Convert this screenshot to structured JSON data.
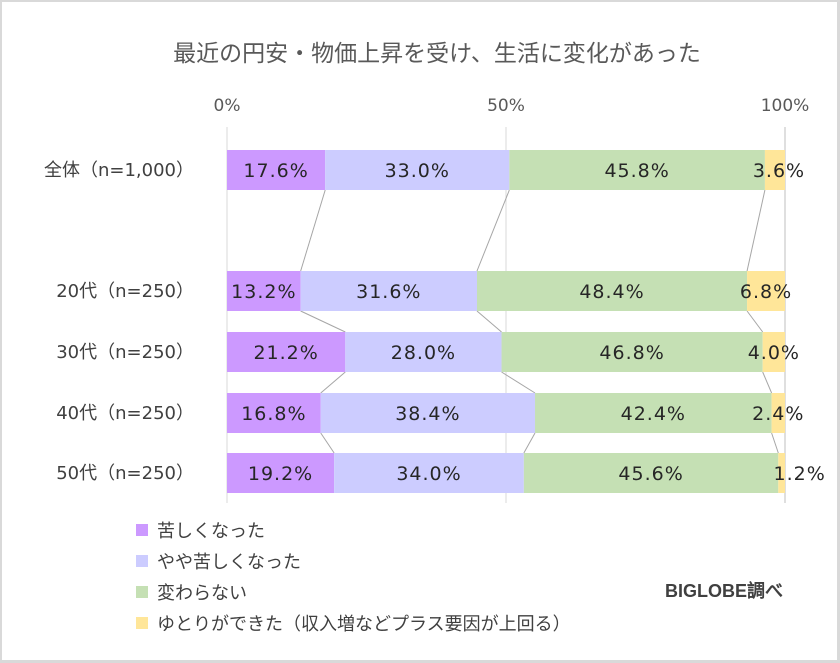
{
  "chart_data": {
    "type": "bar",
    "orientation": "horizontal",
    "stacked": true,
    "percent_stacked": true,
    "title": "最近の円安・物価上昇を受け、生活に変化があった",
    "xlabel": "",
    "ylabel": "",
    "categories": [
      "全体（n=1,000）",
      "20代（n=250）",
      "30代（n=250）",
      "40代（n=250）",
      "50代（n=250）"
    ],
    "series": [
      {
        "name": "苦しくなった",
        "color": "#cc99ff",
        "values": [
          17.6,
          13.2,
          21.2,
          16.8,
          19.2
        ]
      },
      {
        "name": "やや苦しくなった",
        "color": "#ccccff",
        "values": [
          33.0,
          31.6,
          28.0,
          38.4,
          34.0
        ]
      },
      {
        "name": "変わらない",
        "color": "#c5e0b4",
        "values": [
          45.8,
          48.4,
          46.8,
          42.4,
          45.6
        ]
      },
      {
        "name": "ゆとりができた（収入増などプラス要因が上回る）",
        "color": "#ffe699",
        "values": [
          3.6,
          6.8,
          4.0,
          2.4,
          1.2
        ]
      }
    ],
    "data_labels": [
      [
        "17.6%",
        "33.0%",
        "45.8%",
        "3.6%"
      ],
      [
        "13.2%",
        "31.6%",
        "48.4%",
        "6.8%"
      ],
      [
        "21.2%",
        "28.0%",
        "46.8%",
        "4.0%"
      ],
      [
        "16.8%",
        "38.4%",
        "42.4%",
        "2.4%"
      ],
      [
        "19.2%",
        "34.0%",
        "45.6%",
        "1.2%"
      ]
    ],
    "xaxis": {
      "range": [
        0,
        100
      ],
      "ticks": [
        0,
        50,
        100
      ],
      "tick_labels": [
        "0%",
        "50%",
        "100%"
      ],
      "position": "top"
    },
    "gridlines": true,
    "series_lines": true,
    "series_line_color": "#a6a6a6",
    "gridline_color": "#d9d9d9",
    "legend": {
      "position": "bottom-left"
    },
    "source_note": "BIGLOBE調べ"
  }
}
